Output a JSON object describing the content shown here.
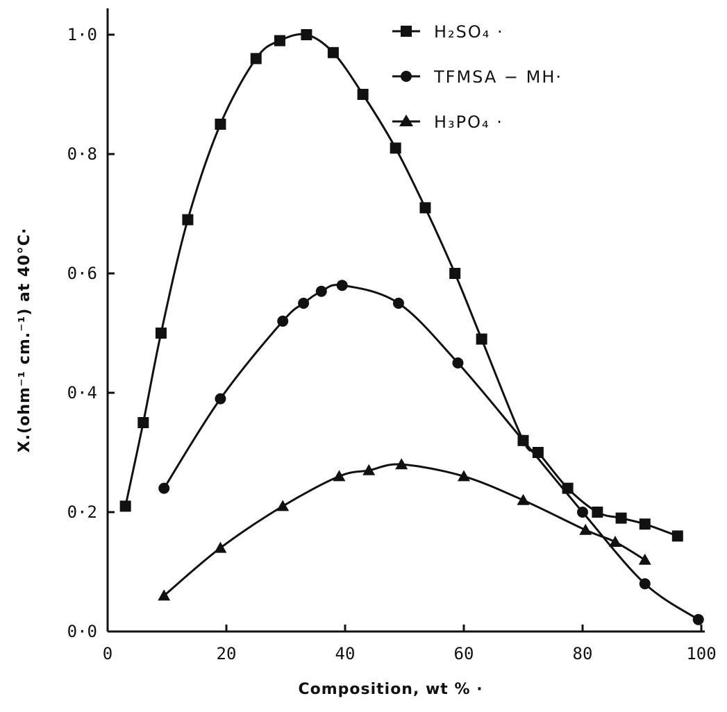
{
  "chart_data": {
    "type": "line",
    "xlabel": "Composition, wt % ·",
    "ylabel": "X.(ohm⁻¹ cm.⁻¹) at 40°C·",
    "xlim": [
      0,
      100
    ],
    "ylim": [
      0.0,
      1.0
    ],
    "x_ticks": [
      "0",
      "20",
      "40",
      "60",
      "80",
      "100"
    ],
    "y_ticks": [
      "0.0",
      "0.2",
      "0.4",
      "0.6",
      "0.8",
      "1.0"
    ],
    "grid": false,
    "legend_position": "top-right",
    "series": [
      {
        "name": "H₂SO₄ ·",
        "marker": "square",
        "x": [
          3,
          6,
          9,
          13.5,
          19,
          25,
          29,
          33.5,
          38,
          43,
          48.5,
          53.5,
          58.5,
          63,
          70,
          72.5,
          77.5,
          82.5,
          86.5,
          90.5,
          96
        ],
        "y": [
          0.21,
          0.35,
          0.5,
          0.69,
          0.85,
          0.96,
          0.99,
          1.0,
          0.97,
          0.9,
          0.81,
          0.71,
          0.6,
          0.49,
          0.32,
          0.3,
          0.24,
          0.2,
          0.19,
          0.18,
          0.16
        ]
      },
      {
        "name": "TFMSA − MH·",
        "marker": "circle",
        "x": [
          9.5,
          19,
          29.5,
          33,
          36,
          39.5,
          49,
          59,
          70,
          80,
          90.5,
          99.5
        ],
        "y": [
          0.24,
          0.39,
          0.52,
          0.55,
          0.57,
          0.58,
          0.55,
          0.45,
          0.32,
          0.2,
          0.08,
          0.02
        ]
      },
      {
        "name": "H₃PO₄ ·",
        "marker": "triangle",
        "x": [
          9.5,
          19,
          29.5,
          39,
          44,
          49.5,
          60,
          70,
          80.5,
          85.5,
          90.5
        ],
        "y": [
          0.06,
          0.14,
          0.21,
          0.26,
          0.27,
          0.28,
          0.26,
          0.22,
          0.17,
          0.15,
          0.12
        ]
      }
    ]
  }
}
